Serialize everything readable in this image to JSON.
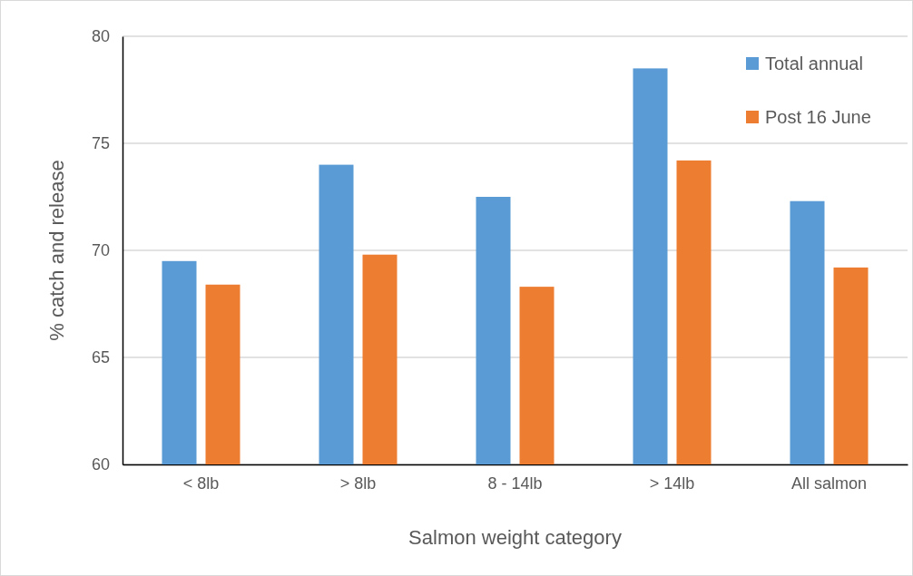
{
  "chart_data": {
    "type": "bar",
    "xlabel": "Salmon weight category",
    "ylabel": "% catch and release",
    "categories": [
      "< 8lb",
      "> 8lb",
      "8 - 14lb",
      "> 14lb",
      "All salmon"
    ],
    "series": [
      {
        "name": "Total annual",
        "color": "#5b9bd5",
        "values": [
          69.5,
          74.0,
          72.5,
          78.5,
          72.3
        ]
      },
      {
        "name": "Post 16 June",
        "color": "#ed7d31",
        "values": [
          68.4,
          69.8,
          68.3,
          74.2,
          69.2
        ]
      }
    ],
    "ylim": [
      60,
      80
    ],
    "yticks": [
      60,
      65,
      70,
      75,
      80
    ],
    "grid": "y",
    "legend": "top right"
  }
}
